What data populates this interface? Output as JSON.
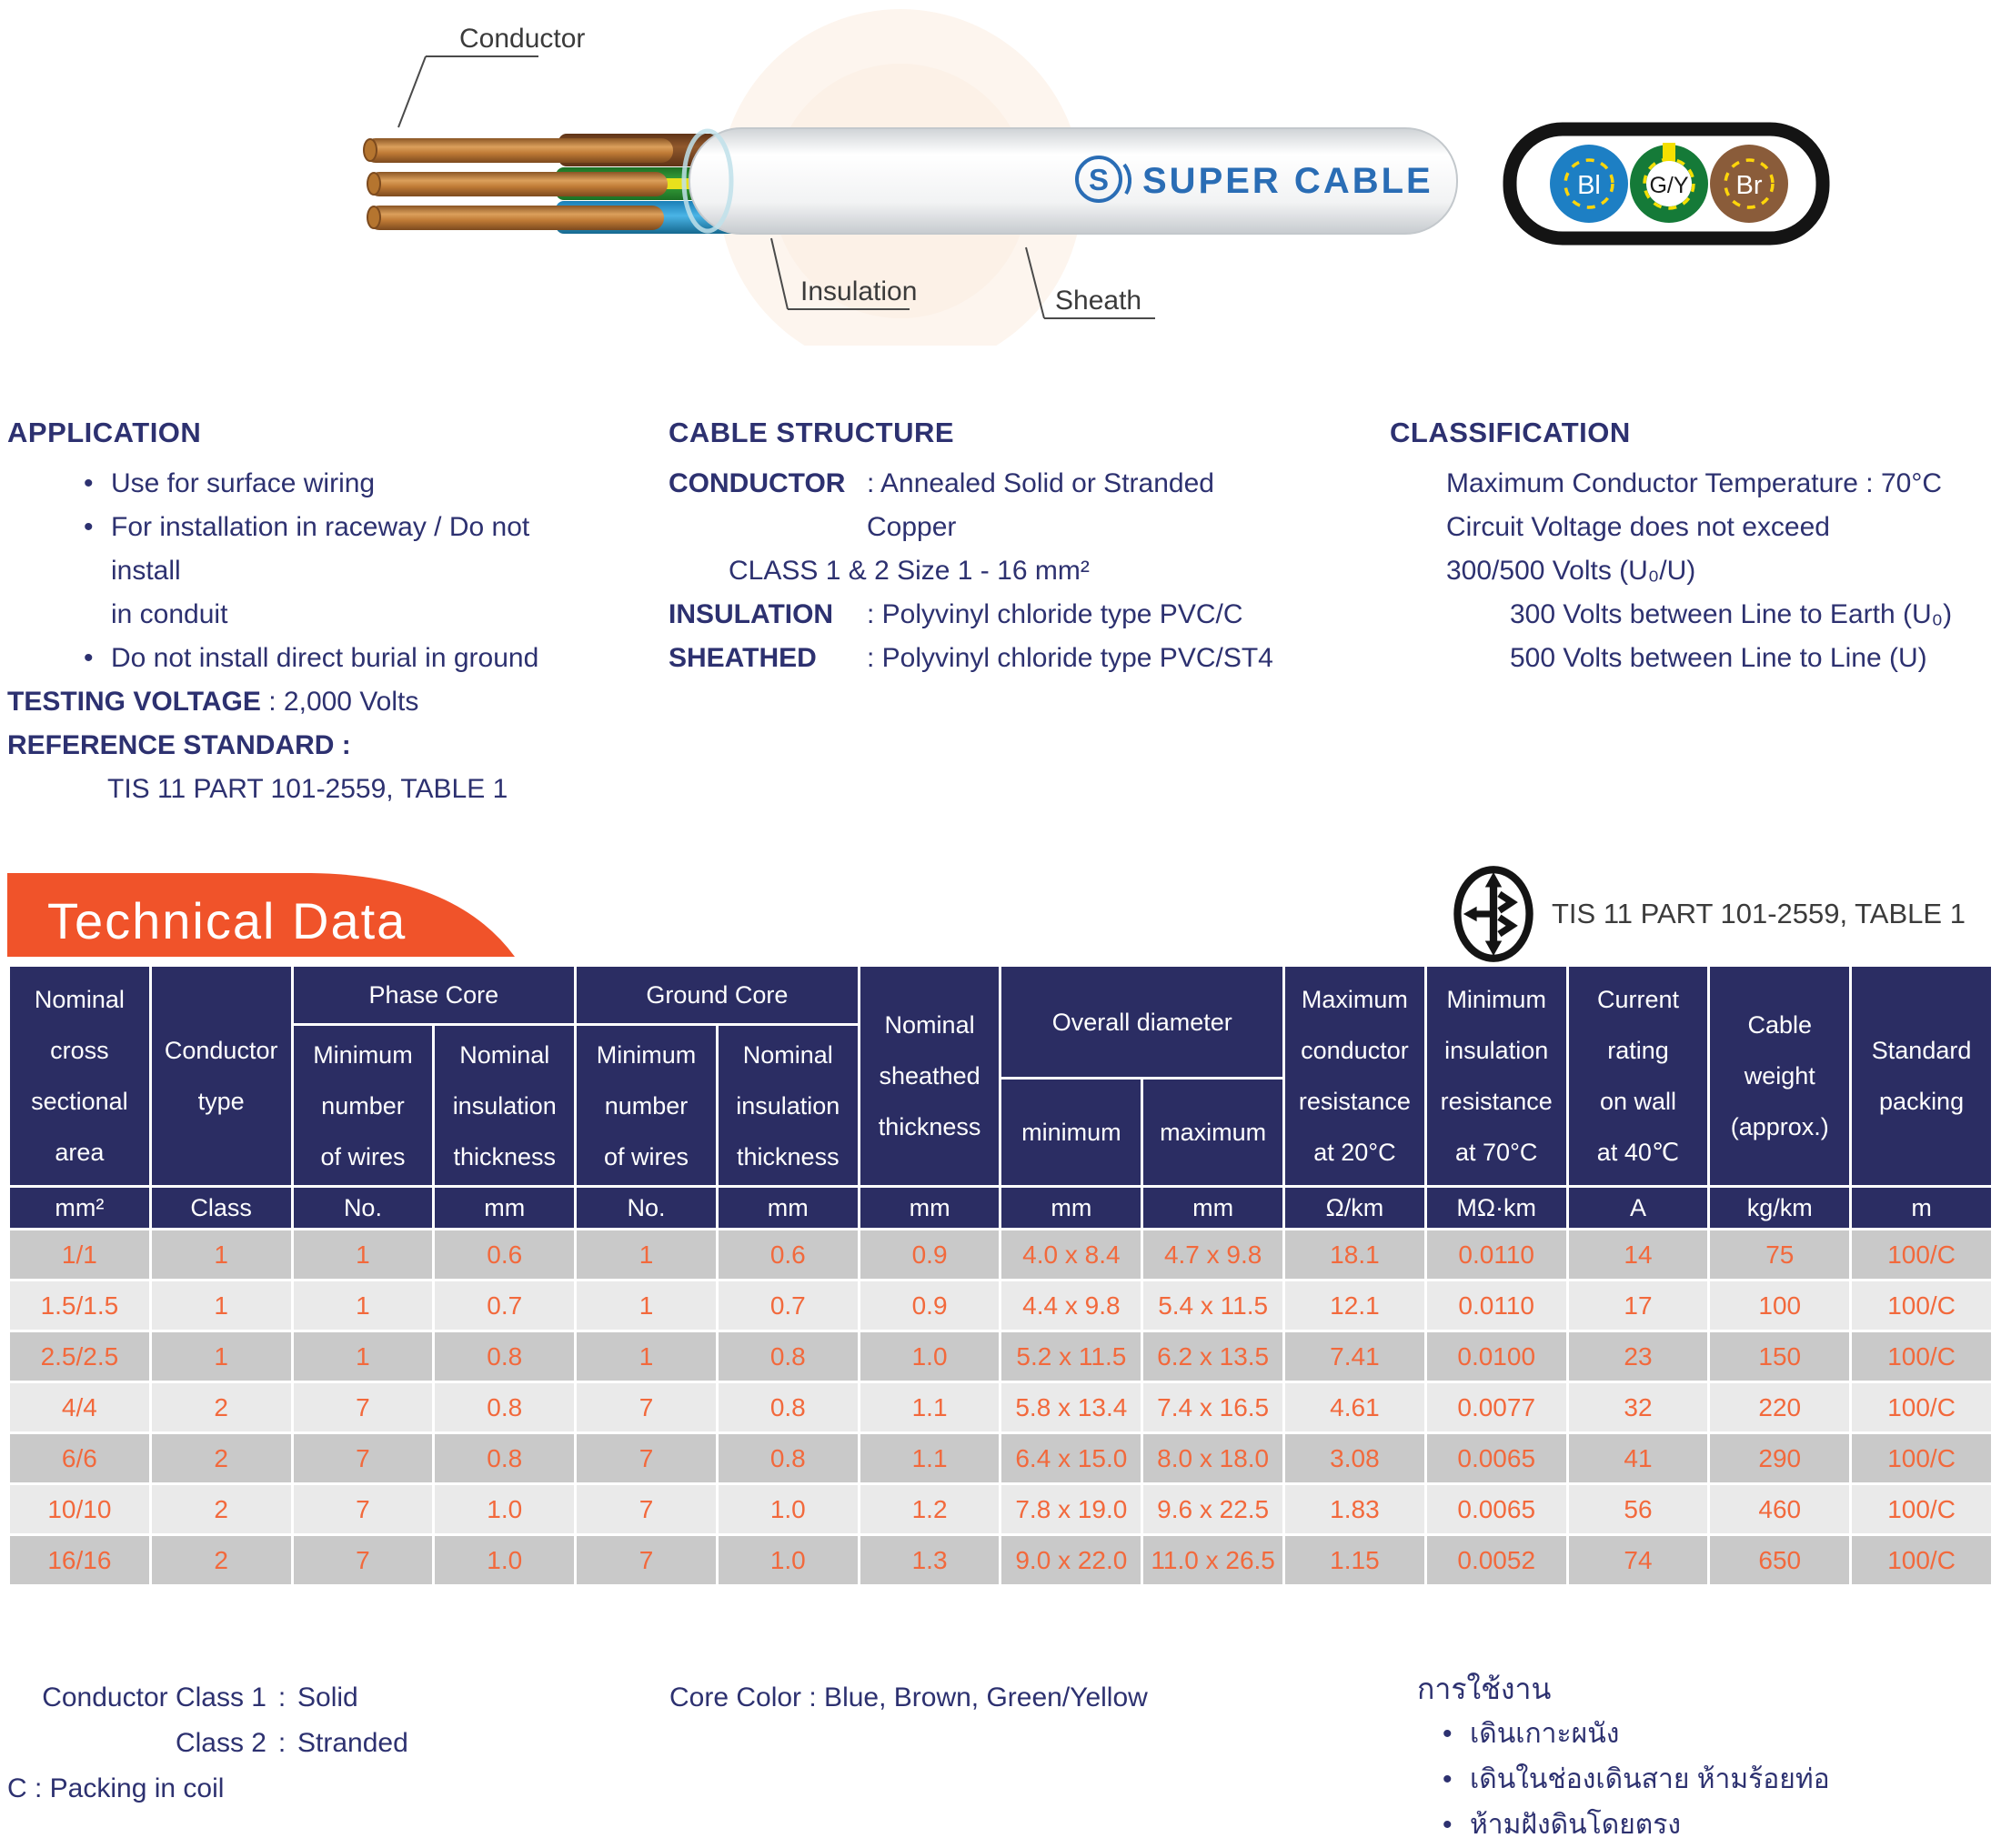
{
  "diagram": {
    "conductor_label": "Conductor",
    "insulation_label": "Insulation",
    "sheath_label": "Sheath",
    "logo_mark": "S",
    "logo_text": "SUPER CABLE",
    "cross_section_cores": [
      {
        "label": "Bl",
        "color": "#1d7fc4"
      },
      {
        "label": "G/Y",
        "color": "#157a38"
      },
      {
        "label": "Br",
        "color": "#8a5c3a"
      }
    ]
  },
  "application": {
    "title": "APPLICATION",
    "bullet1": "Use for surface wiring",
    "bullet2": "For installation in raceway / Do not install",
    "bullet2b": "in conduit",
    "bullet3": "Do not install direct burial in ground",
    "testing_label": "TESTING VOLTAGE",
    "testing_value": ": 2,000 Volts",
    "reference_label": "REFERENCE STANDARD :",
    "reference_value": "TIS 11 PART 101-2559, TABLE 1"
  },
  "cable_structure": {
    "title": "CABLE STRUCTURE",
    "conductor_label": "CONDUCTOR",
    "conductor_value": ": Annealed Solid or Stranded Copper",
    "conductor_value2": "CLASS 1 & 2 Size 1 - 16 mm²",
    "insulation_label": "INSULATION",
    "insulation_value": ": Polyvinyl chloride type PVC/C",
    "sheathed_label": "SHEATHED",
    "sheathed_value": ": Polyvinyl chloride type PVC/ST4"
  },
  "classification": {
    "title": "CLASSIFICATION",
    "line1": "Maximum Conductor Temperature : 70°C",
    "line2": "Circuit Voltage does not exceed",
    "line3": "300/500 Volts (U₀/U)",
    "line4": "300 Volts between Line to Earth (U₀)",
    "line5": "500 Volts between Line to Line (U)"
  },
  "banner": {
    "title": "Technical Data",
    "standard_ref": "TIS 11 PART 101-2559, TABLE 1"
  },
  "table": {
    "header": {
      "col_nominal_area": "Nominal\ncross\nsectional\narea",
      "col_conductor_type": "Conductor\ntype",
      "group_phase": "Phase Core",
      "group_ground": "Ground Core",
      "sub_min_wires": "Minimum\nnumber\nof wires",
      "sub_nom_insul": "Nominal\ninsulation\nthickness",
      "col_sheathed": "Nominal\nsheathed\nthickness",
      "group_overall": "Overall diameter",
      "sub_min": "minimum",
      "sub_max": "maximum",
      "col_max_res": "Maximum\nconductor\nresistance\nat 20°C",
      "col_min_insul_res": "Minimum\ninsulation\nresistance\nat 70°C",
      "col_current": "Current\nrating\non wall\nat 40℃",
      "col_weight": "Cable\nweight\n(approx.)",
      "col_packing": "Standard\npacking"
    },
    "units": [
      "mm²",
      "Class",
      "No.",
      "mm",
      "No.",
      "mm",
      "mm",
      "mm",
      "mm",
      "Ω/km",
      "MΩ·km",
      "A",
      "kg/km",
      "m"
    ],
    "rows": [
      [
        "1/1",
        "1",
        "1",
        "0.6",
        "1",
        "0.6",
        "0.9",
        "4.0 x 8.4",
        "4.7 x 9.8",
        "18.1",
        "0.0110",
        "14",
        "75",
        "100/C"
      ],
      [
        "1.5/1.5",
        "1",
        "1",
        "0.7",
        "1",
        "0.7",
        "0.9",
        "4.4 x 9.8",
        "5.4 x 11.5",
        "12.1",
        "0.0110",
        "17",
        "100",
        "100/C"
      ],
      [
        "2.5/2.5",
        "1",
        "1",
        "0.8",
        "1",
        "0.8",
        "1.0",
        "5.2 x 11.5",
        "6.2 x 13.5",
        "7.41",
        "0.0100",
        "23",
        "150",
        "100/C"
      ],
      [
        "4/4",
        "2",
        "7",
        "0.8",
        "7",
        "0.8",
        "1.1",
        "5.8 x 13.4",
        "7.4 x 16.5",
        "4.61",
        "0.0077",
        "32",
        "220",
        "100/C"
      ],
      [
        "6/6",
        "2",
        "7",
        "0.8",
        "7",
        "0.8",
        "1.1",
        "6.4 x 15.0",
        "8.0 x 18.0",
        "3.08",
        "0.0065",
        "41",
        "290",
        "100/C"
      ],
      [
        "10/10",
        "2",
        "7",
        "1.0",
        "7",
        "1.0",
        "1.2",
        "7.8 x 19.0",
        "9.6 x 22.5",
        "1.83",
        "0.0065",
        "56",
        "460",
        "100/C"
      ],
      [
        "16/16",
        "2",
        "7",
        "1.0",
        "7",
        "1.0",
        "1.3",
        "9.0 x 22.0",
        "11.0 x 26.5",
        "1.15",
        "0.0052",
        "74",
        "650",
        "100/C"
      ]
    ]
  },
  "footnotes": {
    "class1_label": "Conductor Class 1",
    "class1_value": "Solid",
    "class2_label": "Class 2",
    "class2_value": "Stranded",
    "packing_note": "C : Packing in coil",
    "core_color": "Core Color : Blue, Brown, Green/Yellow",
    "thai_title": "การใช้งาน",
    "thai_bullets": [
      "เดินเกาะผนัง",
      "เดินในช่องเดินสาย ห้ามร้อยท่อ",
      "ห้ามฝังดินโดยตรง"
    ]
  },
  "colors": {
    "navy_text": "#2d3170",
    "header_bg": "#2b2d63",
    "banner_orange": "#f0532a",
    "table_text_orange": "#f2693c",
    "row_dark": "#c9c9c9",
    "row_light": "#eaeaea"
  }
}
